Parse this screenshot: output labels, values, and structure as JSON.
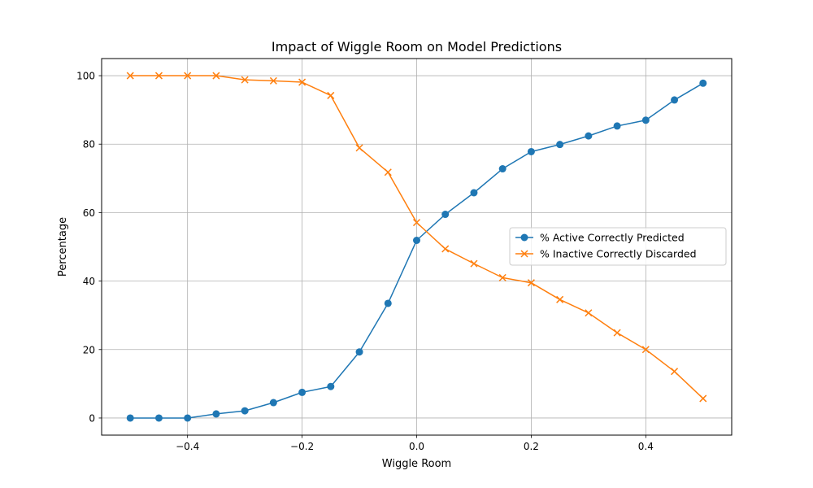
{
  "chart_data": {
    "type": "line",
    "title": "Impact of Wiggle Room on Model Predictions",
    "xlabel": "Wiggle Room",
    "ylabel": "Percentage",
    "xlim": [
      -0.55,
      0.55
    ],
    "ylim": [
      -5,
      105
    ],
    "xticks": [
      -0.4,
      -0.2,
      0.0,
      0.2,
      0.4
    ],
    "xtick_labels": [
      "−0.4",
      "−0.2",
      "0.0",
      "0.2",
      "0.4"
    ],
    "yticks": [
      0,
      20,
      40,
      60,
      80,
      100
    ],
    "ytick_labels": [
      "0",
      "20",
      "40",
      "60",
      "80",
      "100"
    ],
    "grid": true,
    "legend_position": "center-right",
    "x": [
      -0.5,
      -0.45,
      -0.4,
      -0.35,
      -0.3,
      -0.25,
      -0.2,
      -0.15,
      -0.1,
      -0.05,
      0.0,
      0.05,
      0.1,
      0.15,
      0.2,
      0.25,
      0.3,
      0.35,
      0.4,
      0.45,
      0.5
    ],
    "series": [
      {
        "name": "% Active Correctly Predicted",
        "color": "#1f77b4",
        "marker": "circle",
        "values": [
          0,
          0,
          0,
          1.2,
          2.1,
          4.5,
          7.5,
          9.2,
          19.3,
          33.5,
          51.9,
          59.5,
          65.8,
          72.8,
          77.8,
          79.9,
          82.4,
          85.3,
          87.0,
          92.9,
          97.8
        ]
      },
      {
        "name": "% Inactive Correctly Discarded",
        "color": "#ff7f0e",
        "marker": "x",
        "values": [
          100,
          100,
          100,
          100,
          98.8,
          98.5,
          98.1,
          94.2,
          78.9,
          71.8,
          57.1,
          49.4,
          45.1,
          41.0,
          39.5,
          34.6,
          30.7,
          24.9,
          20.0,
          13.6,
          5.7
        ]
      }
    ]
  }
}
